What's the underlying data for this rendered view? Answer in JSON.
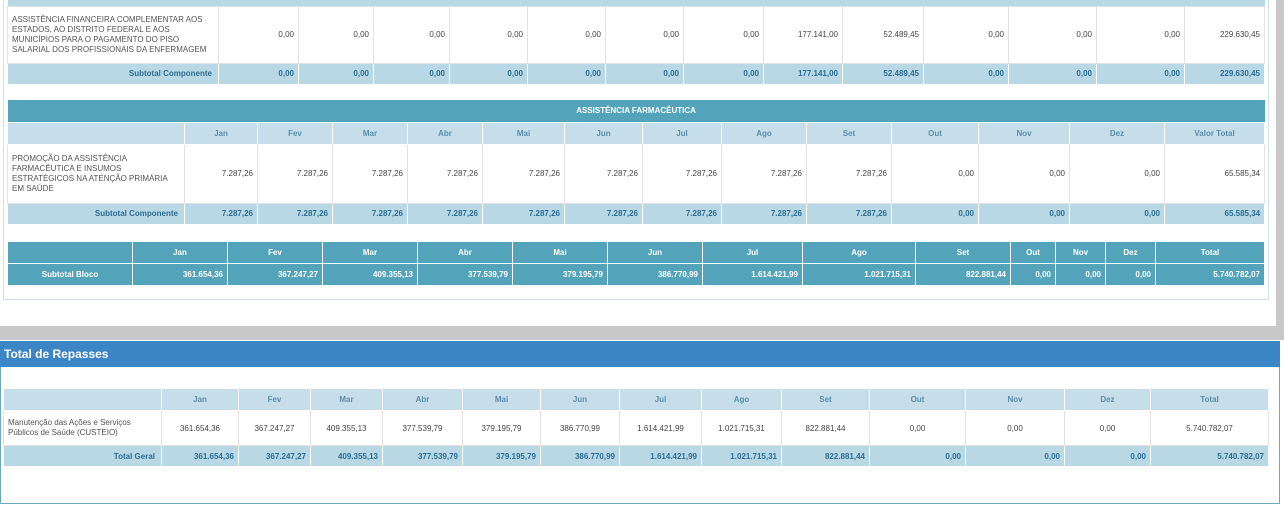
{
  "months": [
    "Jan",
    "Fev",
    "Mar",
    "Abr",
    "Mai",
    "Jun",
    "Jul",
    "Ago",
    "Set",
    "Out",
    "Nov",
    "Dez"
  ],
  "section_a": {
    "row": {
      "desc": "ASSISTÊNCIA FINANCEIRA COMPLEMENTAR AOS ESTADOS, AO DISTRITO FEDERAL E AOS MUNICÍPIOS PARA O PAGAMENTO DO PISO SALARIAL DOS PROFISSIONAIS DA ENFERMAGEM",
      "values": [
        "0,00",
        "0,00",
        "0,00",
        "0,00",
        "0,00",
        "0,00",
        "0,00",
        "177.141,00",
        "52.489,45",
        "0,00",
        "0,00",
        "0,00",
        "229.630,45"
      ]
    },
    "subtotal": {
      "label": "Subtotal Componente",
      "values": [
        "0,00",
        "0,00",
        "0,00",
        "0,00",
        "0,00",
        "0,00",
        "0,00",
        "177.141,00",
        "52.489,45",
        "0,00",
        "0,00",
        "0,00",
        "229.630,45"
      ]
    }
  },
  "section_b": {
    "title": "ASSISTÊNCIA FARMACÊUTICA",
    "total_label": "Valor Total",
    "row": {
      "desc": "PROMOÇÃO DA ASSISTÊNCIA FARMACÊUTICA E INSUMOS ESTRATÉGICOS NA ATENÇÃO PRIMÁRIA EM SAÚDE",
      "values": [
        "7.287,26",
        "7.287,26",
        "7.287,26",
        "7.287,26",
        "7.287,26",
        "7.287,26",
        "7.287,26",
        "7.287,26",
        "7.287,26",
        "0,00",
        "0,00",
        "0,00",
        "65.585,34"
      ]
    },
    "subtotal": {
      "label": "Subtotal Componente",
      "values": [
        "7.287,26",
        "7.287,26",
        "7.287,26",
        "7.287,26",
        "7.287,26",
        "7.287,26",
        "7.287,26",
        "7.287,26",
        "7.287,26",
        "0,00",
        "0,00",
        "0,00",
        "65.585,34"
      ]
    }
  },
  "bloco": {
    "total_label": "Total",
    "label": "Subtotal Bloco",
    "values": [
      "361.654,36",
      "367.247,27",
      "409.355,13",
      "377.539,79",
      "379.195,79",
      "386.770,99",
      "1.614.421,99",
      "1.021.715,31",
      "822.881,44",
      "0,00",
      "0,00",
      "0,00",
      "5.740.782,07"
    ]
  },
  "repasses": {
    "title": "Total de Repasses",
    "total_label": "Total",
    "row": {
      "desc": "Manutenção das Ações e Serviços Públicos de Saúde (CUSTEIO)",
      "values": [
        "361.654,36",
        "367.247,27",
        "409.355,13",
        "377.539,79",
        "379.195,79",
        "386.770,99",
        "1.614.421,99",
        "1.021.715,31",
        "822.881,44",
        "0,00",
        "0,00",
        "0,00",
        "5.740.782,07"
      ]
    },
    "total_geral": {
      "label": "Total Geral",
      "values": [
        "361.654,36",
        "367.247,27",
        "409.355,13",
        "377.539,79",
        "379.195,79",
        "386.770,99",
        "1.614.421,99",
        "1.021.715,31",
        "822.881,44",
        "0,00",
        "0,00",
        "0,00",
        "5.740.782,07"
      ]
    }
  }
}
